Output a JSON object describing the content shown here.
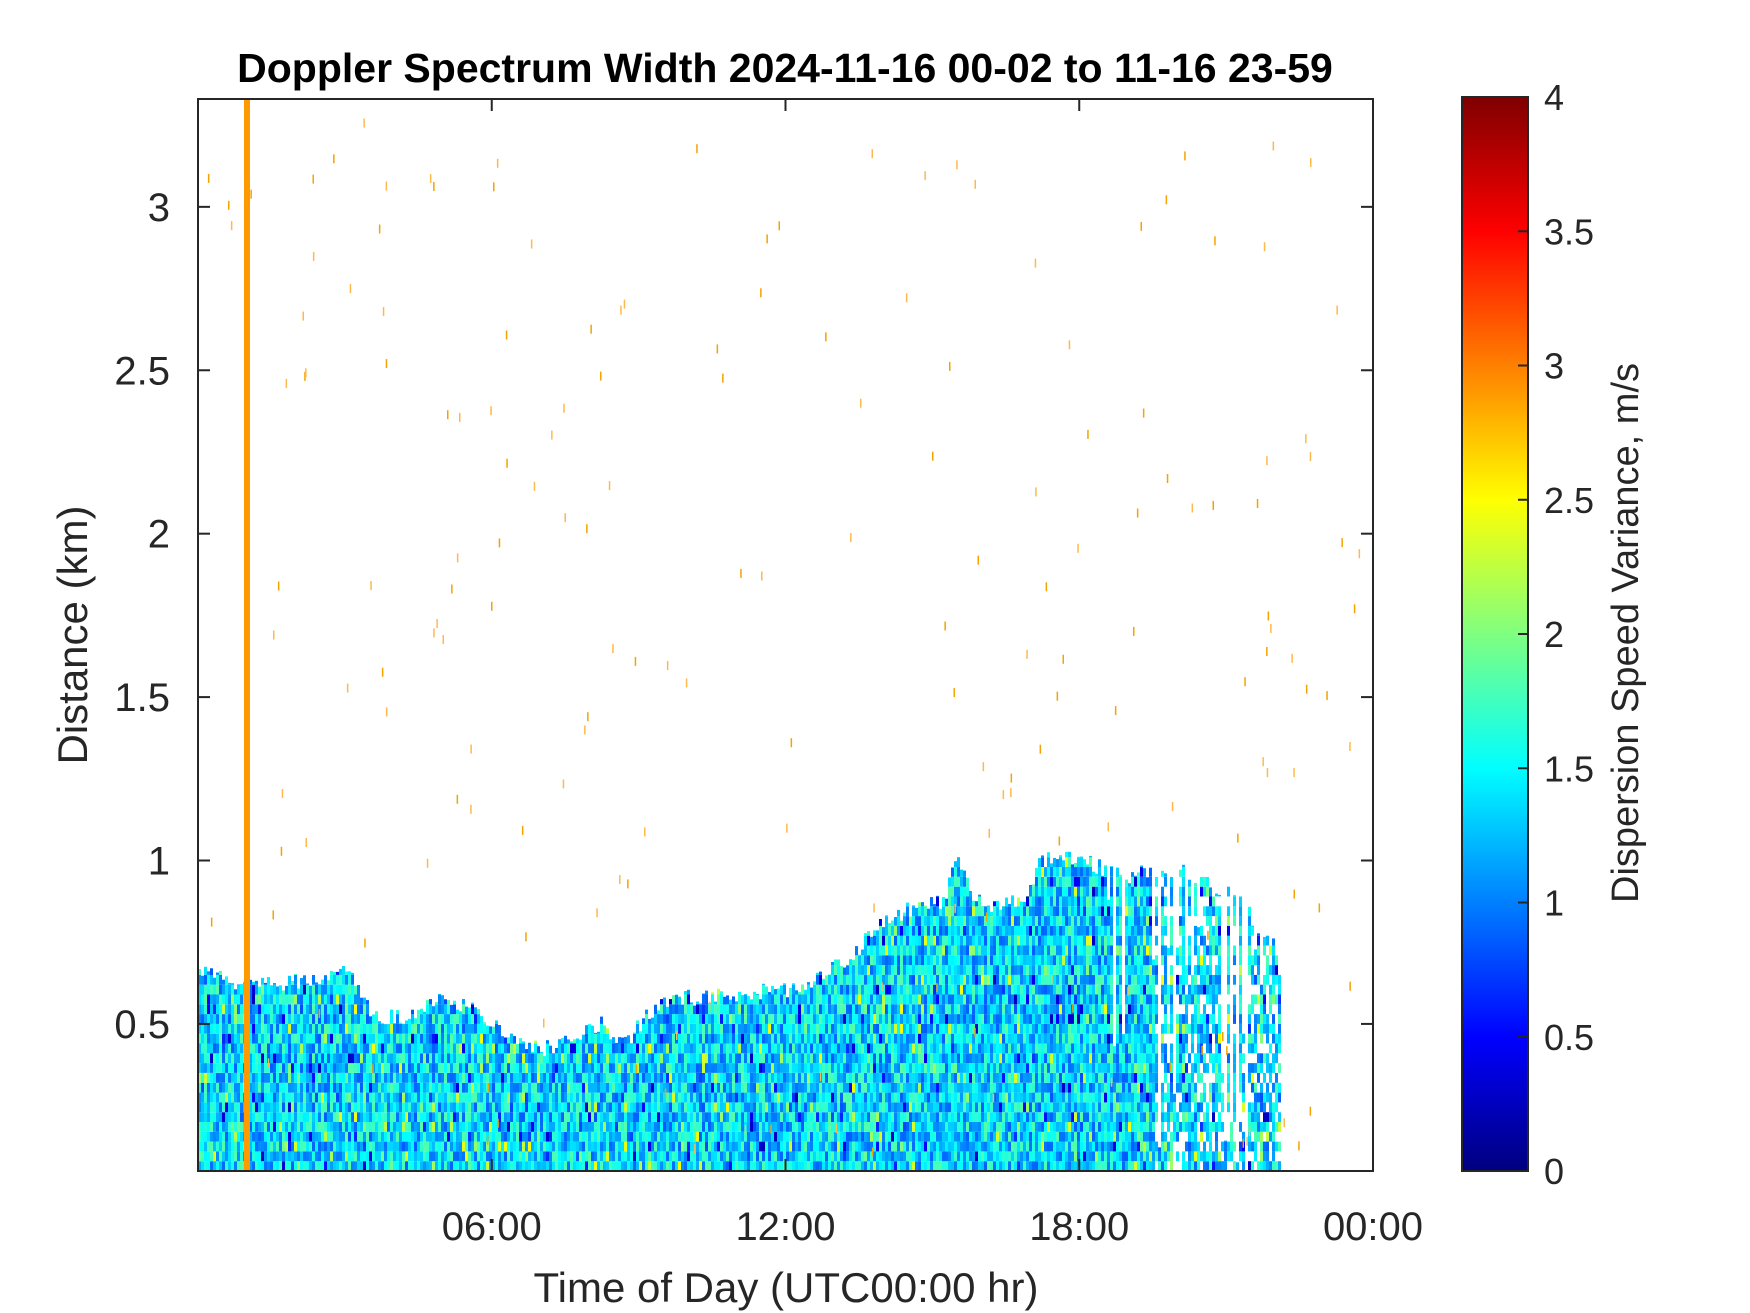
{
  "chart_data": {
    "type": "heatmap",
    "title": "Doppler Spectrum Width 2024-11-16 00-02 to 11-16 23-59",
    "xlabel": "Time of Day (UTC00:00 hr)",
    "ylabel": "Distance (km)",
    "x_unit": "hours",
    "xlim": [
      0,
      24
    ],
    "ylim": [
      0.05,
      3.33
    ],
    "x_ticks": [
      {
        "value": 6,
        "label": "06:00"
      },
      {
        "value": 12,
        "label": "12:00"
      },
      {
        "value": 18,
        "label": "18:00"
      },
      {
        "value": 24,
        "label": "00:00"
      }
    ],
    "y_ticks": [
      {
        "value": 0.5,
        "label": "0.5"
      },
      {
        "value": 1,
        "label": "1"
      },
      {
        "value": 1.5,
        "label": "1.5"
      },
      {
        "value": 2,
        "label": "2"
      },
      {
        "value": 2.5,
        "label": "2.5"
      },
      {
        "value": 3,
        "label": "3"
      }
    ],
    "colorbar": {
      "label": "Dispersion Speed Variance, m/s",
      "colormap": "jet",
      "clim": [
        0,
        4
      ],
      "ticks": [
        {
          "value": 0,
          "label": "0"
        },
        {
          "value": 0.5,
          "label": "0.5"
        },
        {
          "value": 1,
          "label": "1"
        },
        {
          "value": 1.5,
          "label": "1.5"
        },
        {
          "value": 2,
          "label": "2"
        },
        {
          "value": 2.5,
          "label": "2.5"
        },
        {
          "value": 3,
          "label": "3"
        },
        {
          "value": 3.5,
          "label": "3.5"
        },
        {
          "value": 4,
          "label": "4"
        }
      ]
    },
    "echo_top_profile": {
      "time_h": [
        0,
        0.9,
        1.5,
        2.5,
        3.0,
        3.3,
        3.6,
        4.2,
        4.8,
        5.5,
        6.0,
        6.6,
        7.0,
        7.6,
        8.2,
        8.7,
        9.1,
        9.6,
        10.5,
        11.2,
        11.9,
        12.4,
        13.0,
        13.4,
        14.0,
        14.5,
        15.2,
        15.5,
        15.8,
        16.2,
        16.8,
        17.2,
        17.7,
        18.0,
        18.4,
        19.0,
        19.6,
        20.2,
        20.8,
        21.2,
        21.6,
        21.9,
        22.1
      ],
      "top_km": [
        0.66,
        0.62,
        0.62,
        0.64,
        0.68,
        0.58,
        0.52,
        0.52,
        0.58,
        0.55,
        0.5,
        0.44,
        0.42,
        0.45,
        0.5,
        0.44,
        0.52,
        0.58,
        0.58,
        0.6,
        0.6,
        0.62,
        0.68,
        0.72,
        0.82,
        0.85,
        0.88,
        1.02,
        0.9,
        0.85,
        0.88,
        1.0,
        1.02,
        1.0,
        0.98,
        0.95,
        0.98,
        0.96,
        0.92,
        0.9,
        0.8,
        0.78,
        0.62
      ],
      "values_range": [
        0.8,
        2.2
      ],
      "typical_value": 1.35
    },
    "artifact_line": {
      "time_h": 1.0,
      "value": 2.9
    }
  }
}
